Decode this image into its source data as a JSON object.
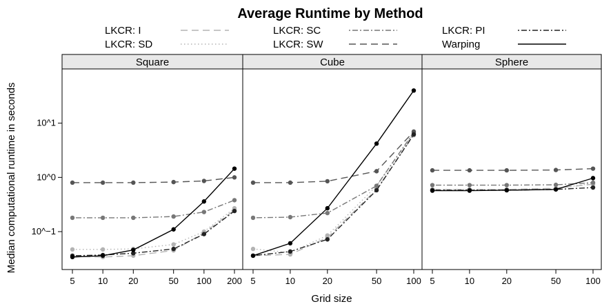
{
  "chart_data": {
    "type": "line",
    "title": "Average Runtime by Method",
    "xlabel": "Grid size",
    "ylabel": "Median computational runtime in seconds",
    "y_scale": "log10",
    "y_ticks": [
      {
        "value": 10,
        "label": "10^1"
      },
      {
        "value": 1,
        "label": "10^0"
      },
      {
        "value": 0.1,
        "label": "10^−1"
      }
    ],
    "legend": [
      {
        "name": "LKCR: I",
        "color": "#b3b3b3",
        "dash": "long-dash"
      },
      {
        "name": "LKCR: SD",
        "color": "#b3b3b3",
        "dash": "dotted"
      },
      {
        "name": "LKCR: SC",
        "color": "#777777",
        "dash": "dot-dash"
      },
      {
        "name": "LKCR: SW",
        "color": "#555555",
        "dash": "long-dash"
      },
      {
        "name": "LKCR: PI",
        "color": "#222222",
        "dash": "dot-dash"
      },
      {
        "name": "Warping",
        "color": "#000000",
        "dash": "solid"
      }
    ],
    "panels": [
      {
        "name": "Square",
        "x": [
          5,
          10,
          20,
          50,
          100,
          200
        ],
        "x_tick_labels": [
          "5",
          "10",
          "20",
          "50",
          "100",
          "200"
        ],
        "series": [
          {
            "name": "LKCR: I",
            "values": [
              0.035,
              0.034,
              0.036,
              0.045,
              0.095,
              0.25
            ]
          },
          {
            "name": "LKCR: SD",
            "values": [
              0.047,
              0.047,
              0.048,
              0.058,
              0.1,
              0.27
            ]
          },
          {
            "name": "LKCR: SC",
            "values": [
              0.18,
              0.18,
              0.18,
              0.19,
              0.23,
              0.38
            ]
          },
          {
            "name": "LKCR: SW",
            "values": [
              0.8,
              0.8,
              0.8,
              0.82,
              0.86,
              1.0
            ]
          },
          {
            "name": "LKCR: PI",
            "values": [
              0.036,
              0.037,
              0.04,
              0.048,
              0.09,
              0.24
            ]
          },
          {
            "name": "Warping",
            "values": [
              0.034,
              0.036,
              0.046,
              0.11,
              0.36,
              1.45
            ]
          }
        ]
      },
      {
        "name": "Cube",
        "x": [
          5,
          10,
          20,
          50,
          100
        ],
        "x_tick_labels": [
          "5",
          "10",
          "20",
          "50",
          "100"
        ],
        "series": [
          {
            "name": "LKCR: I",
            "values": [
              0.036,
              0.038,
              0.078,
              0.6,
              6.0
            ]
          },
          {
            "name": "LKCR: SD",
            "values": [
              0.048,
              0.041,
              0.085,
              0.7,
              6.5
            ]
          },
          {
            "name": "LKCR: SC",
            "values": [
              0.18,
              0.185,
              0.22,
              0.7,
              6.8
            ]
          },
          {
            "name": "LKCR: SW",
            "values": [
              0.8,
              0.8,
              0.85,
              1.3,
              7.0
            ]
          },
          {
            "name": "LKCR: PI",
            "values": [
              0.036,
              0.043,
              0.072,
              0.58,
              6.2
            ]
          },
          {
            "name": "Warping",
            "values": [
              0.036,
              0.061,
              0.27,
              4.2,
              40.0
            ]
          }
        ]
      },
      {
        "name": "Sphere",
        "x": [
          5,
          10,
          20,
          50,
          100
        ],
        "x_tick_labels": [
          "5",
          "10",
          "20",
          "50",
          "100"
        ],
        "series": [
          {
            "name": "LKCR: I",
            "values": [
              0.6,
              0.6,
              0.6,
              0.63,
              0.75
            ]
          },
          {
            "name": "LKCR: SD",
            "values": [
              0.6,
              0.6,
              0.6,
              0.62,
              0.78
            ]
          },
          {
            "name": "LKCR: SC",
            "values": [
              0.72,
              0.72,
              0.72,
              0.73,
              0.8
            ]
          },
          {
            "name": "LKCR: SW",
            "values": [
              1.35,
              1.35,
              1.35,
              1.37,
              1.45
            ]
          },
          {
            "name": "LKCR: PI",
            "values": [
              0.58,
              0.58,
              0.58,
              0.6,
              0.65
            ]
          },
          {
            "name": "Warping",
            "values": [
              0.57,
              0.57,
              0.58,
              0.6,
              0.97
            ]
          }
        ]
      }
    ]
  }
}
